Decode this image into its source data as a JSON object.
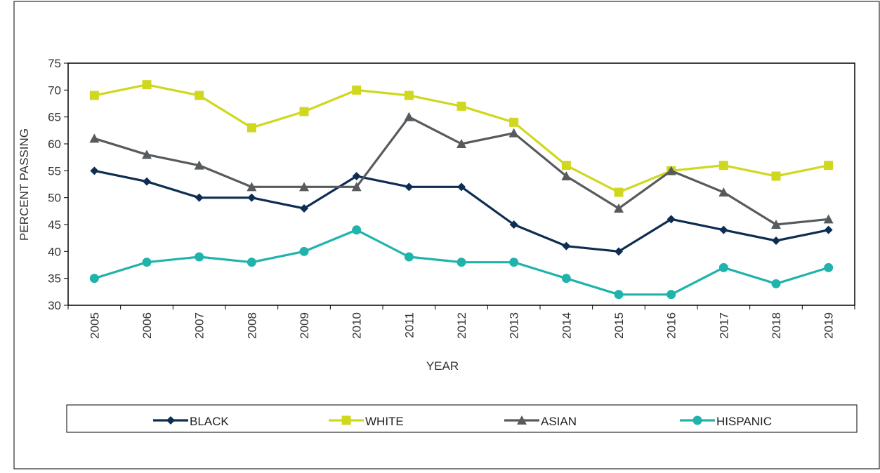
{
  "chart_data": {
    "type": "line",
    "title": "",
    "xlabel": "YEAR",
    "ylabel": "PERCENT PASSING",
    "categories": [
      "2005",
      "2006",
      "2007",
      "2008",
      "2009",
      "2010",
      "2011",
      "2012",
      "2013",
      "2014",
      "2015",
      "2016",
      "2017",
      "2018",
      "2019"
    ],
    "ylim": [
      30,
      75
    ],
    "yticks": [
      "30",
      "35",
      "40",
      "45",
      "50",
      "55",
      "60",
      "65",
      "70",
      "75"
    ],
    "grid": false,
    "legend_position": "bottom",
    "series": [
      {
        "name": "BLACK",
        "color": "#0d2d52",
        "marker": "diamond",
        "values": [
          55,
          53,
          50,
          50,
          48,
          54,
          52,
          52,
          45,
          41,
          40,
          46,
          44,
          42,
          44
        ]
      },
      {
        "name": "WHITE",
        "color": "#cfd81e",
        "marker": "square",
        "values": [
          69,
          71,
          69,
          63,
          66,
          70,
          69,
          67,
          64,
          56,
          51,
          55,
          56,
          54,
          56
        ]
      },
      {
        "name": "ASIAN",
        "color": "#575b5e",
        "marker": "triangle",
        "values": [
          61,
          58,
          56,
          52,
          52,
          52,
          65,
          60,
          62,
          54,
          48,
          55,
          51,
          45,
          46
        ]
      },
      {
        "name": "HISPANIC",
        "color": "#1fb3ac",
        "marker": "circle",
        "values": [
          35,
          38,
          39,
          38,
          40,
          44,
          39,
          38,
          38,
          35,
          32,
          32,
          37,
          34,
          37
        ]
      }
    ]
  }
}
